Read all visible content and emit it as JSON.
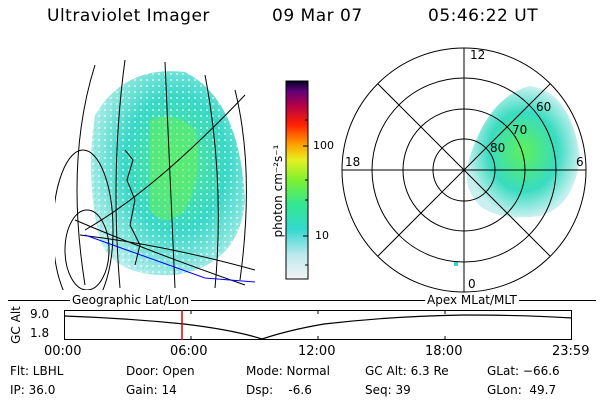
{
  "header": {
    "instrument": "Ultraviolet Imager",
    "date": "09 Mar 07",
    "time": "05:46:22 UT"
  },
  "colorbar": {
    "unit_label": "photon cm⁻²s⁻¹",
    "ticks": [
      "100",
      "10"
    ]
  },
  "polar_plot": {
    "mlt_labels": {
      "top": "12",
      "left": "18",
      "right": "6",
      "bottom": "0"
    },
    "lat_labels": [
      "60",
      "70",
      "80"
    ]
  },
  "timeline": {
    "left_label": "Geographic Lat/Lon",
    "right_label": "Apex MLat/MLT",
    "axis_label": "GC Alt",
    "y_max": "9.0",
    "y_min": "1.8",
    "x_ticks": [
      "00:00",
      "06:00",
      "12:00",
      "18:00",
      "23:59"
    ]
  },
  "info": {
    "flt": "Flt: LBHL",
    "ip": "IP: 36.0",
    "door": "Door: Open",
    "gain": "Gain: 14",
    "mode": "Mode: Normal",
    "dsp": "Dsp:    -6.6",
    "gcalt": "GC Alt: 6.3 Re",
    "seq": "Seq: 39",
    "glat": "GLat: −66.6",
    "glon": "GLon:  49.7"
  },
  "colors": {
    "marker": "#e00000",
    "coast": "#0000ff",
    "emission_low": "#7de0e0",
    "emission_mid": "#3ee8a0",
    "emission_high": "#5ef03a"
  }
}
